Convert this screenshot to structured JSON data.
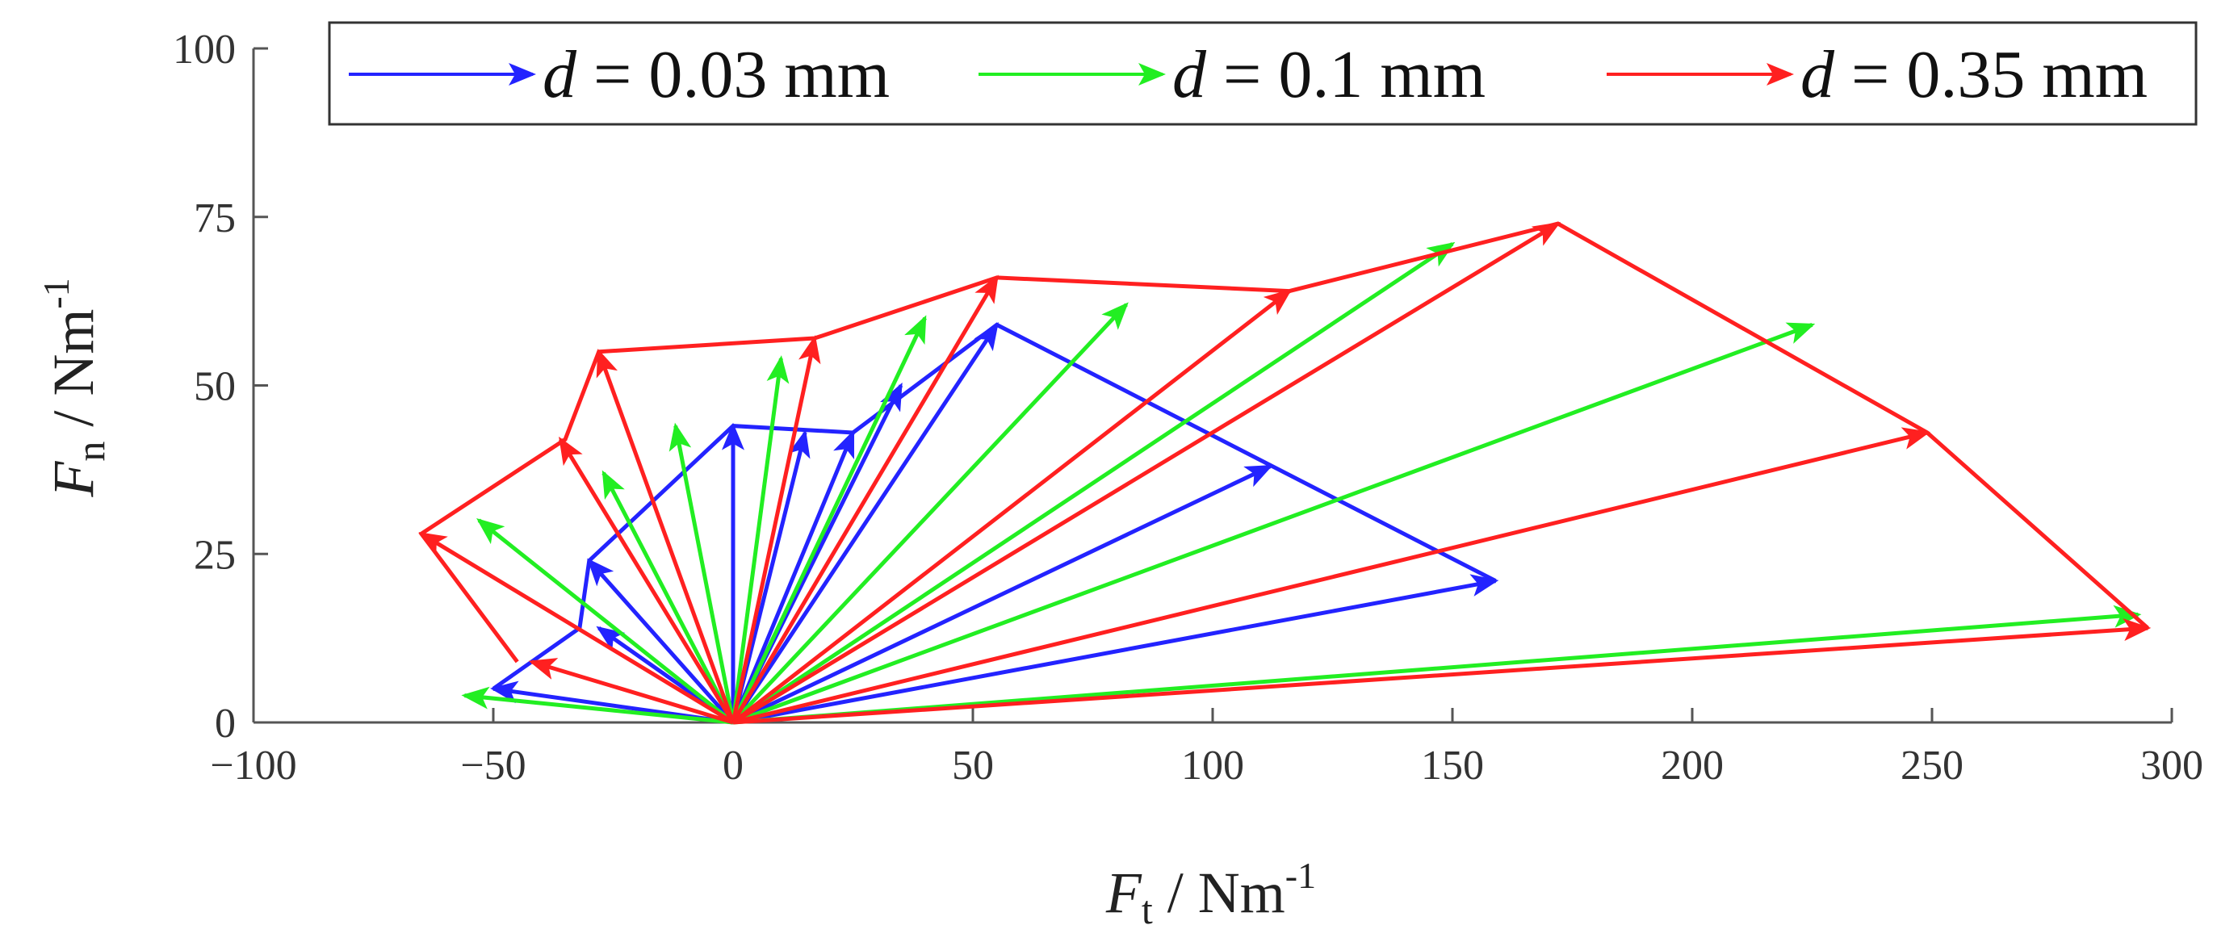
{
  "chart_data": {
    "type": "quiver",
    "xlim": [
      -100,
      300
    ],
    "ylim": [
      0,
      100
    ],
    "xticks": [
      -100,
      -50,
      0,
      50,
      100,
      150,
      200,
      250,
      300
    ],
    "yticks": [
      0,
      25,
      50,
      75,
      100
    ],
    "xtick_labels": [
      "−100",
      "−50",
      "0",
      "50",
      "100",
      "150",
      "200",
      "250",
      "300"
    ],
    "ytick_labels": [
      "0",
      "25",
      "50",
      "75",
      "100"
    ],
    "xlabel": {
      "main": "F",
      "sub": "t",
      "unit": " / Nm",
      "sup": "-1"
    },
    "ylabel": {
      "main": "F",
      "sub": "n",
      "unit": " / Nm",
      "sup": "-1"
    },
    "legend": {
      "position": "top",
      "entries": [
        {
          "series": "d003",
          "var": "d",
          "text": " = 0.03 mm"
        },
        {
          "series": "d01",
          "var": "d",
          "text": " = 0.1 mm"
        },
        {
          "series": "d035",
          "var": "d",
          "text": " = 0.35 mm"
        }
      ]
    },
    "series": [
      {
        "name": "d = 0.03 mm",
        "key": "d003",
        "color": "#2323ff",
        "vectors": [
          [
            -50,
            5
          ],
          [
            -28,
            14
          ],
          [
            -30,
            24
          ],
          [
            0,
            44
          ],
          [
            15,
            43
          ],
          [
            25,
            43
          ],
          [
            35,
            50
          ],
          [
            55,
            59
          ],
          [
            112,
            38
          ],
          [
            159,
            21
          ]
        ],
        "envelope": [
          [
            -50,
            5
          ],
          [
            -32,
            14
          ],
          [
            -30,
            24
          ],
          [
            0,
            44
          ],
          [
            25,
            43
          ],
          [
            55,
            59
          ],
          [
            159,
            21
          ]
        ]
      },
      {
        "name": "d = 0.1 mm",
        "key": "d01",
        "color": "#22ee22",
        "vectors": [
          [
            -56,
            4
          ],
          [
            -53,
            30
          ],
          [
            -27,
            37
          ],
          [
            -12,
            44
          ],
          [
            10,
            54
          ],
          [
            40,
            60
          ],
          [
            82,
            62
          ],
          [
            150,
            71
          ],
          [
            225,
            59
          ],
          [
            293,
            16
          ]
        ],
        "envelope": []
      },
      {
        "name": "d = 0.35 mm",
        "key": "d035",
        "color": "#ff2020",
        "vectors": [
          [
            -42,
            9
          ],
          [
            -65,
            28
          ],
          [
            -36,
            42
          ],
          [
            -28,
            55
          ],
          [
            17,
            57
          ],
          [
            55,
            66
          ],
          [
            116,
            64
          ],
          [
            172,
            74
          ],
          [
            249,
            43
          ],
          [
            295,
            14
          ]
        ],
        "envelope": [
          [
            -45,
            9
          ],
          [
            -65,
            28
          ],
          [
            -35,
            42
          ],
          [
            -28,
            55
          ],
          [
            17,
            57
          ],
          [
            55,
            66
          ],
          [
            116,
            64
          ],
          [
            172,
            74
          ],
          [
            249,
            43
          ],
          [
            295,
            14
          ]
        ]
      }
    ]
  }
}
